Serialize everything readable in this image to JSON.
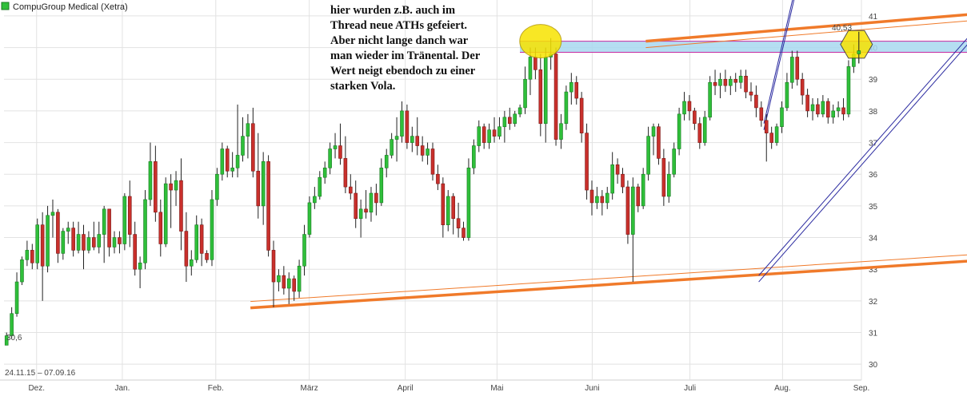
{
  "chart_data": {
    "type": "candlestick",
    "title": "CompuGroup Medical (Xetra)",
    "date_range_label": "24.11.15 – 07.09.16",
    "low_marker_label": "30,6",
    "high_marker_label": "40,53",
    "ylim": [
      29.5,
      41.2
    ],
    "y_ticks": [
      30,
      31,
      32,
      33,
      34,
      35,
      36,
      37,
      38,
      39,
      40,
      41
    ],
    "months": [
      {
        "label": "Dez.",
        "pos": 0.038
      },
      {
        "label": "Jan.",
        "pos": 0.138
      },
      {
        "label": "Feb.",
        "pos": 0.247
      },
      {
        "label": "März",
        "pos": 0.356
      },
      {
        "label": "April",
        "pos": 0.468
      },
      {
        "label": "Mai",
        "pos": 0.575
      },
      {
        "label": "Juni",
        "pos": 0.686
      },
      {
        "label": "Juli",
        "pos": 0.8
      },
      {
        "label": "Aug.",
        "pos": 0.908
      },
      {
        "label": "Sep.",
        "pos": 1.0
      }
    ],
    "candles": [
      {
        "o": 30.6,
        "h": 31.0,
        "l": 30.6,
        "c": 30.9
      },
      {
        "o": 30.9,
        "h": 31.8,
        "l": 30.8,
        "c": 31.6
      },
      {
        "o": 31.6,
        "h": 32.9,
        "l": 31.5,
        "c": 32.6
      },
      {
        "o": 32.6,
        "h": 33.4,
        "l": 32.5,
        "c": 33.3
      },
      {
        "o": 33.3,
        "h": 33.9,
        "l": 33.1,
        "c": 33.6
      },
      {
        "o": 33.6,
        "h": 33.8,
        "l": 33.0,
        "c": 33.2
      },
      {
        "o": 33.2,
        "h": 34.6,
        "l": 33.0,
        "c": 34.4
      },
      {
        "o": 34.4,
        "h": 34.8,
        "l": 32.0,
        "c": 33.1
      },
      {
        "o": 33.1,
        "h": 35.0,
        "l": 32.9,
        "c": 34.7
      },
      {
        "o": 34.7,
        "h": 35.2,
        "l": 34.0,
        "c": 34.8
      },
      {
        "o": 34.8,
        "h": 34.9,
        "l": 33.2,
        "c": 33.5
      },
      {
        "o": 33.5,
        "h": 34.3,
        "l": 33.3,
        "c": 34.2
      },
      {
        "o": 34.2,
        "h": 34.5,
        "l": 33.8,
        "c": 34.3
      },
      {
        "o": 34.3,
        "h": 34.5,
        "l": 33.4,
        "c": 33.6
      },
      {
        "o": 33.6,
        "h": 34.5,
        "l": 33.5,
        "c": 34.1
      },
      {
        "o": 34.1,
        "h": 34.4,
        "l": 33.0,
        "c": 33.6
      },
      {
        "o": 33.6,
        "h": 34.2,
        "l": 33.5,
        "c": 34.0
      },
      {
        "o": 34.0,
        "h": 34.5,
        "l": 33.6,
        "c": 33.7
      },
      {
        "o": 33.7,
        "h": 34.5,
        "l": 33.5,
        "c": 34.1
      },
      {
        "o": 34.1,
        "h": 35.0,
        "l": 33.2,
        "c": 34.9
      },
      {
        "o": 34.9,
        "h": 34.9,
        "l": 33.4,
        "c": 33.7
      },
      {
        "o": 33.7,
        "h": 34.2,
        "l": 33.5,
        "c": 34.0
      },
      {
        "o": 34.0,
        "h": 34.2,
        "l": 33.5,
        "c": 33.8
      },
      {
        "o": 33.8,
        "h": 35.4,
        "l": 33.6,
        "c": 35.3
      },
      {
        "o": 35.3,
        "h": 35.8,
        "l": 33.7,
        "c": 34.1
      },
      {
        "o": 34.1,
        "h": 34.5,
        "l": 32.8,
        "c": 33.0
      },
      {
        "o": 33.0,
        "h": 33.4,
        "l": 32.4,
        "c": 33.2
      },
      {
        "o": 33.2,
        "h": 35.5,
        "l": 33.0,
        "c": 35.2
      },
      {
        "o": 35.2,
        "h": 37.0,
        "l": 35.0,
        "c": 36.4
      },
      {
        "o": 36.4,
        "h": 36.9,
        "l": 34.5,
        "c": 34.8
      },
      {
        "o": 34.8,
        "h": 35.2,
        "l": 33.4,
        "c": 33.8
      },
      {
        "o": 33.8,
        "h": 35.9,
        "l": 33.7,
        "c": 35.7
      },
      {
        "o": 35.7,
        "h": 36.0,
        "l": 34.3,
        "c": 35.5
      },
      {
        "o": 35.5,
        "h": 36.1,
        "l": 35.0,
        "c": 35.8
      },
      {
        "o": 35.8,
        "h": 36.5,
        "l": 33.6,
        "c": 34.2
      },
      {
        "o": 34.2,
        "h": 34.8,
        "l": 32.6,
        "c": 33.1
      },
      {
        "o": 33.1,
        "h": 33.6,
        "l": 32.8,
        "c": 33.3
      },
      {
        "o": 33.3,
        "h": 34.7,
        "l": 33.2,
        "c": 34.4
      },
      {
        "o": 34.4,
        "h": 34.6,
        "l": 33.1,
        "c": 33.5
      },
      {
        "o": 33.5,
        "h": 33.6,
        "l": 33.2,
        "c": 33.3
      },
      {
        "o": 33.3,
        "h": 35.5,
        "l": 33.1,
        "c": 35.2
      },
      {
        "o": 35.2,
        "h": 36.2,
        "l": 35.0,
        "c": 36.0
      },
      {
        "o": 36.0,
        "h": 37.0,
        "l": 35.8,
        "c": 36.8
      },
      {
        "o": 36.8,
        "h": 36.9,
        "l": 35.9,
        "c": 36.1
      },
      {
        "o": 36.1,
        "h": 36.7,
        "l": 35.9,
        "c": 36.2
      },
      {
        "o": 36.2,
        "h": 38.2,
        "l": 35.9,
        "c": 36.6
      },
      {
        "o": 36.6,
        "h": 37.8,
        "l": 36.4,
        "c": 37.2
      },
      {
        "o": 37.2,
        "h": 37.9,
        "l": 36.5,
        "c": 37.6
      },
      {
        "o": 37.6,
        "h": 38.1,
        "l": 35.9,
        "c": 36.1
      },
      {
        "o": 36.1,
        "h": 37.3,
        "l": 34.6,
        "c": 35.0
      },
      {
        "o": 35.0,
        "h": 36.7,
        "l": 34.4,
        "c": 36.4
      },
      {
        "o": 36.4,
        "h": 36.6,
        "l": 33.4,
        "c": 33.6
      },
      {
        "o": 33.6,
        "h": 33.9,
        "l": 31.8,
        "c": 32.6
      },
      {
        "o": 32.6,
        "h": 33.0,
        "l": 32.3,
        "c": 32.8
      },
      {
        "o": 32.8,
        "h": 33.1,
        "l": 32.2,
        "c": 32.4
      },
      {
        "o": 32.4,
        "h": 32.9,
        "l": 31.9,
        "c": 32.7
      },
      {
        "o": 32.7,
        "h": 32.8,
        "l": 32.0,
        "c": 32.3
      },
      {
        "o": 32.3,
        "h": 33.3,
        "l": 32.1,
        "c": 33.1
      },
      {
        "o": 33.1,
        "h": 34.4,
        "l": 32.8,
        "c": 34.1
      },
      {
        "o": 34.1,
        "h": 35.3,
        "l": 34.0,
        "c": 35.1
      },
      {
        "o": 35.1,
        "h": 35.6,
        "l": 34.9,
        "c": 35.3
      },
      {
        "o": 35.3,
        "h": 36.1,
        "l": 35.2,
        "c": 35.9
      },
      {
        "o": 35.9,
        "h": 36.4,
        "l": 35.7,
        "c": 36.2
      },
      {
        "o": 36.2,
        "h": 37.0,
        "l": 36.0,
        "c": 36.8
      },
      {
        "o": 36.8,
        "h": 37.3,
        "l": 36.5,
        "c": 36.9
      },
      {
        "o": 36.9,
        "h": 37.6,
        "l": 36.3,
        "c": 36.5
      },
      {
        "o": 36.5,
        "h": 37.2,
        "l": 35.4,
        "c": 35.6
      },
      {
        "o": 35.6,
        "h": 36.0,
        "l": 35.2,
        "c": 35.4
      },
      {
        "o": 35.4,
        "h": 35.8,
        "l": 34.3,
        "c": 34.6
      },
      {
        "o": 34.6,
        "h": 35.2,
        "l": 34.0,
        "c": 34.9
      },
      {
        "o": 34.9,
        "h": 35.5,
        "l": 34.6,
        "c": 34.8
      },
      {
        "o": 34.8,
        "h": 35.6,
        "l": 34.5,
        "c": 35.4
      },
      {
        "o": 35.4,
        "h": 35.7,
        "l": 34.7,
        "c": 35.1
      },
      {
        "o": 35.1,
        "h": 36.5,
        "l": 35.0,
        "c": 36.2
      },
      {
        "o": 36.2,
        "h": 36.8,
        "l": 35.9,
        "c": 36.6
      },
      {
        "o": 36.6,
        "h": 37.3,
        "l": 36.5,
        "c": 37.1
      },
      {
        "o": 37.1,
        "h": 37.8,
        "l": 36.4,
        "c": 37.2
      },
      {
        "o": 37.2,
        "h": 38.3,
        "l": 37.0,
        "c": 38.0
      },
      {
        "o": 38.0,
        "h": 38.2,
        "l": 36.8,
        "c": 37.0
      },
      {
        "o": 37.0,
        "h": 37.5,
        "l": 36.7,
        "c": 37.2
      },
      {
        "o": 37.2,
        "h": 37.8,
        "l": 36.6,
        "c": 36.9
      },
      {
        "o": 36.9,
        "h": 37.2,
        "l": 36.4,
        "c": 36.6
      },
      {
        "o": 36.6,
        "h": 37.0,
        "l": 36.3,
        "c": 36.8
      },
      {
        "o": 36.8,
        "h": 37.0,
        "l": 35.8,
        "c": 36.0
      },
      {
        "o": 36.0,
        "h": 36.3,
        "l": 35.5,
        "c": 35.7
      },
      {
        "o": 35.7,
        "h": 35.9,
        "l": 34.0,
        "c": 34.4
      },
      {
        "o": 34.4,
        "h": 35.5,
        "l": 34.2,
        "c": 35.3
      },
      {
        "o": 35.3,
        "h": 35.4,
        "l": 34.1,
        "c": 34.6
      },
      {
        "o": 34.6,
        "h": 35.1,
        "l": 34.0,
        "c": 34.3
      },
      {
        "o": 34.3,
        "h": 34.5,
        "l": 33.9,
        "c": 34.0
      },
      {
        "o": 34.0,
        "h": 36.5,
        "l": 33.9,
        "c": 36.2
      },
      {
        "o": 36.2,
        "h": 37.1,
        "l": 36.0,
        "c": 36.9
      },
      {
        "o": 36.9,
        "h": 37.7,
        "l": 36.7,
        "c": 37.5
      },
      {
        "o": 37.5,
        "h": 37.6,
        "l": 36.8,
        "c": 37.0
      },
      {
        "o": 37.0,
        "h": 37.6,
        "l": 36.8,
        "c": 37.4
      },
      {
        "o": 37.4,
        "h": 37.8,
        "l": 37.0,
        "c": 37.2
      },
      {
        "o": 37.2,
        "h": 37.8,
        "l": 37.1,
        "c": 37.5
      },
      {
        "o": 37.5,
        "h": 38.0,
        "l": 37.0,
        "c": 37.8
      },
      {
        "o": 37.8,
        "h": 38.1,
        "l": 37.4,
        "c": 37.6
      },
      {
        "o": 37.6,
        "h": 38.0,
        "l": 37.5,
        "c": 37.9
      },
      {
        "o": 37.9,
        "h": 38.2,
        "l": 37.8,
        "c": 38.1
      },
      {
        "o": 38.1,
        "h": 39.4,
        "l": 37.9,
        "c": 39.0
      },
      {
        "o": 39.0,
        "h": 40.0,
        "l": 38.5,
        "c": 39.7
      },
      {
        "o": 39.7,
        "h": 40.0,
        "l": 39.0,
        "c": 39.3
      },
      {
        "o": 39.3,
        "h": 39.8,
        "l": 37.2,
        "c": 37.6
      },
      {
        "o": 37.6,
        "h": 40.0,
        "l": 37.0,
        "c": 39.7
      },
      {
        "o": 39.7,
        "h": 40.3,
        "l": 39.3,
        "c": 39.8
      },
      {
        "o": 39.8,
        "h": 40.0,
        "l": 36.9,
        "c": 37.1
      },
      {
        "o": 37.1,
        "h": 37.9,
        "l": 36.8,
        "c": 37.6
      },
      {
        "o": 37.6,
        "h": 38.8,
        "l": 37.4,
        "c": 38.6
      },
      {
        "o": 38.6,
        "h": 39.2,
        "l": 38.2,
        "c": 38.9
      },
      {
        "o": 38.9,
        "h": 39.1,
        "l": 38.2,
        "c": 38.4
      },
      {
        "o": 38.4,
        "h": 38.6,
        "l": 37.0,
        "c": 37.3
      },
      {
        "o": 37.3,
        "h": 37.6,
        "l": 35.2,
        "c": 35.5
      },
      {
        "o": 35.5,
        "h": 35.8,
        "l": 34.7,
        "c": 35.1
      },
      {
        "o": 35.1,
        "h": 35.6,
        "l": 34.9,
        "c": 35.3
      },
      {
        "o": 35.3,
        "h": 35.5,
        "l": 34.7,
        "c": 35.1
      },
      {
        "o": 35.1,
        "h": 35.6,
        "l": 34.9,
        "c": 35.4
      },
      {
        "o": 35.4,
        "h": 36.7,
        "l": 35.2,
        "c": 36.3
      },
      {
        "o": 36.3,
        "h": 36.5,
        "l": 35.7,
        "c": 36.0
      },
      {
        "o": 36.0,
        "h": 36.2,
        "l": 35.4,
        "c": 35.6
      },
      {
        "o": 35.6,
        "h": 35.8,
        "l": 33.8,
        "c": 34.1
      },
      {
        "o": 34.1,
        "h": 35.9,
        "l": 32.6,
        "c": 35.6
      },
      {
        "o": 35.6,
        "h": 35.7,
        "l": 34.8,
        "c": 35.0
      },
      {
        "o": 35.0,
        "h": 36.2,
        "l": 34.9,
        "c": 36.0
      },
      {
        "o": 36.0,
        "h": 37.5,
        "l": 35.8,
        "c": 37.2
      },
      {
        "o": 37.2,
        "h": 37.6,
        "l": 36.6,
        "c": 37.5
      },
      {
        "o": 37.5,
        "h": 37.6,
        "l": 36.3,
        "c": 36.5
      },
      {
        "o": 36.5,
        "h": 36.8,
        "l": 35.0,
        "c": 35.3
      },
      {
        "o": 35.3,
        "h": 36.4,
        "l": 35.1,
        "c": 36.0
      },
      {
        "o": 36.0,
        "h": 37.0,
        "l": 35.9,
        "c": 36.8
      },
      {
        "o": 36.8,
        "h": 38.1,
        "l": 36.6,
        "c": 37.9
      },
      {
        "o": 37.9,
        "h": 38.6,
        "l": 37.7,
        "c": 38.3
      },
      {
        "o": 38.3,
        "h": 38.5,
        "l": 37.7,
        "c": 38.0
      },
      {
        "o": 38.0,
        "h": 38.1,
        "l": 37.4,
        "c": 37.6
      },
      {
        "o": 37.6,
        "h": 37.8,
        "l": 36.8,
        "c": 37.0
      },
      {
        "o": 37.0,
        "h": 38.0,
        "l": 36.9,
        "c": 37.8
      },
      {
        "o": 37.8,
        "h": 39.1,
        "l": 37.7,
        "c": 38.9
      },
      {
        "o": 38.9,
        "h": 39.3,
        "l": 38.5,
        "c": 38.8
      },
      {
        "o": 38.8,
        "h": 39.2,
        "l": 38.4,
        "c": 39.0
      },
      {
        "o": 39.0,
        "h": 39.3,
        "l": 38.6,
        "c": 38.8
      },
      {
        "o": 38.8,
        "h": 39.1,
        "l": 38.5,
        "c": 39.0
      },
      {
        "o": 39.0,
        "h": 39.2,
        "l": 38.6,
        "c": 38.9
      },
      {
        "o": 38.9,
        "h": 39.3,
        "l": 38.7,
        "c": 39.1
      },
      {
        "o": 39.1,
        "h": 39.3,
        "l": 38.4,
        "c": 38.6
      },
      {
        "o": 38.6,
        "h": 38.9,
        "l": 38.3,
        "c": 38.5
      },
      {
        "o": 38.5,
        "h": 38.8,
        "l": 37.8,
        "c": 38.1
      },
      {
        "o": 38.1,
        "h": 38.3,
        "l": 37.5,
        "c": 37.7
      },
      {
        "o": 37.7,
        "h": 37.9,
        "l": 36.4,
        "c": 37.3
      },
      {
        "o": 37.3,
        "h": 37.5,
        "l": 36.8,
        "c": 37.0
      },
      {
        "o": 37.0,
        "h": 37.6,
        "l": 36.9,
        "c": 37.5
      },
      {
        "o": 37.5,
        "h": 38.3,
        "l": 37.3,
        "c": 38.1
      },
      {
        "o": 38.1,
        "h": 39.2,
        "l": 38.0,
        "c": 38.9
      },
      {
        "o": 38.9,
        "h": 39.9,
        "l": 38.7,
        "c": 39.7
      },
      {
        "o": 39.7,
        "h": 39.9,
        "l": 38.8,
        "c": 39.0
      },
      {
        "o": 39.0,
        "h": 39.2,
        "l": 38.2,
        "c": 38.5
      },
      {
        "o": 38.5,
        "h": 38.7,
        "l": 37.8,
        "c": 38.0
      },
      {
        "o": 38.0,
        "h": 38.4,
        "l": 37.7,
        "c": 38.2
      },
      {
        "o": 38.2,
        "h": 38.4,
        "l": 37.8,
        "c": 37.9
      },
      {
        "o": 37.9,
        "h": 38.5,
        "l": 37.8,
        "c": 38.3
      },
      {
        "o": 38.3,
        "h": 38.4,
        "l": 37.6,
        "c": 37.8
      },
      {
        "o": 37.8,
        "h": 38.2,
        "l": 37.6,
        "c": 38.0
      },
      {
        "o": 38.0,
        "h": 38.3,
        "l": 37.8,
        "c": 38.1
      },
      {
        "o": 38.1,
        "h": 38.4,
        "l": 37.7,
        "c": 37.9
      },
      {
        "o": 37.9,
        "h": 39.6,
        "l": 37.8,
        "c": 39.4
      },
      {
        "o": 39.4,
        "h": 40.1,
        "l": 39.2,
        "c": 39.8
      },
      {
        "o": 39.8,
        "h": 40.5,
        "l": 39.5,
        "c": 39.9
      }
    ]
  },
  "annotation": {
    "text": "hier wurden z.B. auch im\nThread neue ATHs gefeiert.\nAber nicht lange danch war\nman wieder im Tränental.  Der\nWert neigt ebendoch zu einer\nstarken Vola."
  },
  "colors": {
    "up": "#2fbf3a",
    "down": "#c9302c",
    "orange_trend": "#f07a2a",
    "channel": "#2a2aa0",
    "resistance_band": "#a8d8f0",
    "highlight": "#f7e300",
    "grid": "#e2e2e2"
  }
}
